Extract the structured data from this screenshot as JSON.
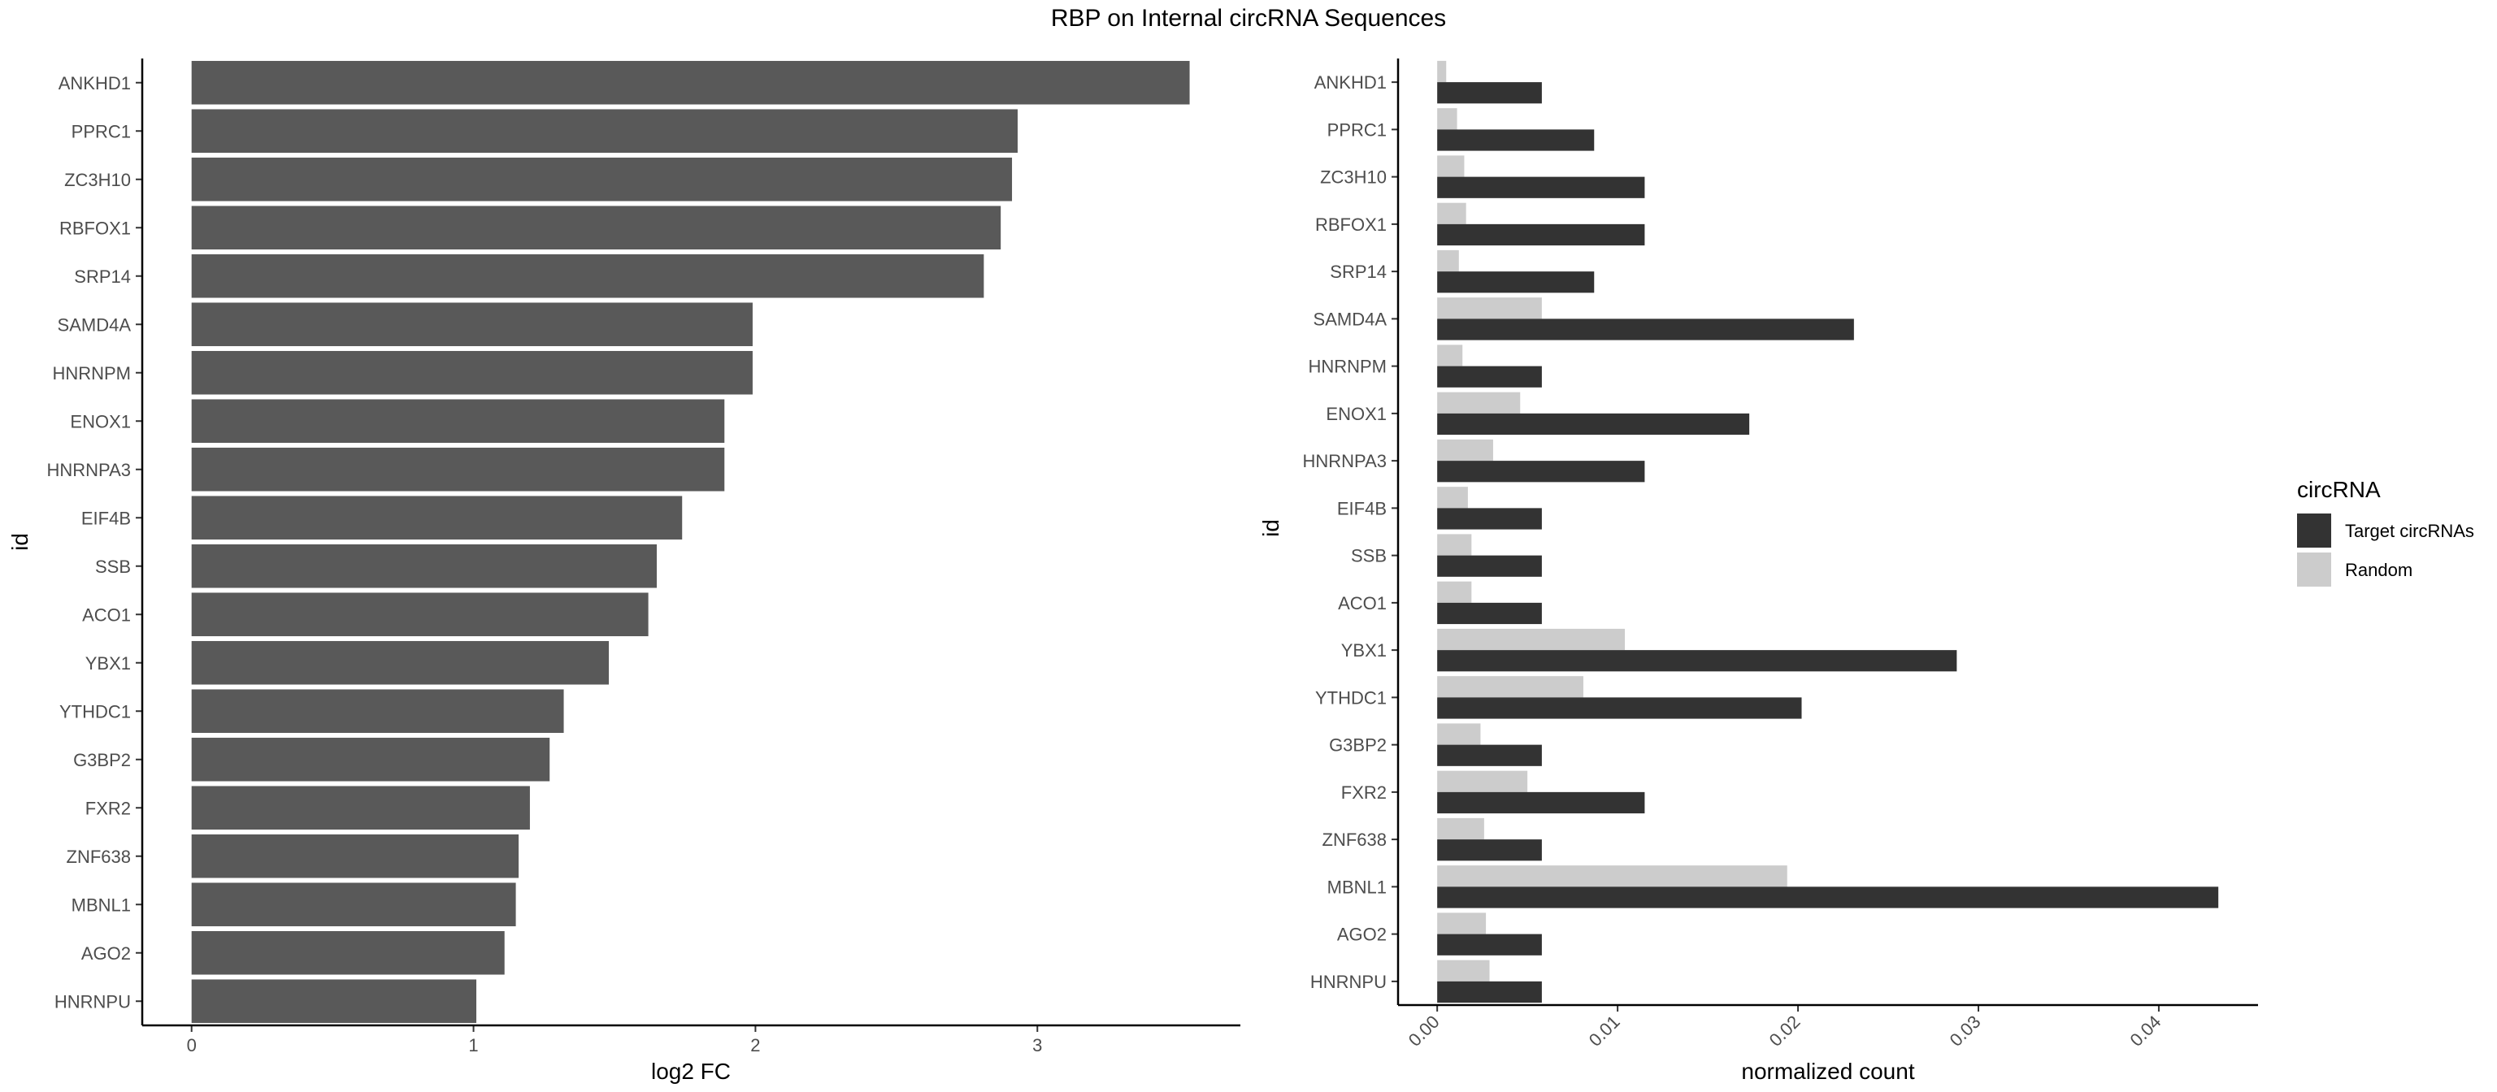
{
  "title": "RBP on Internal circRNA Sequences",
  "chart_data": [
    {
      "type": "bar",
      "orientation": "horizontal",
      "title": "RBP on Internal circRNA Sequences",
      "xlabel": "log2 FC",
      "ylabel": "id",
      "categories": [
        "ANKHD1",
        "PPRC1",
        "ZC3H10",
        "RBFOX1",
        "SRP14",
        "SAMD4A",
        "HNRNPM",
        "ENOX1",
        "HNRNPA3",
        "EIF4B",
        "SSB",
        "ACO1",
        "YBX1",
        "YTHDC1",
        "G3BP2",
        "FXR2",
        "ZNF638",
        "MBNL1",
        "AGO2",
        "HNRNPU"
      ],
      "values": [
        3.54,
        2.93,
        2.91,
        2.87,
        2.81,
        1.99,
        1.99,
        1.89,
        1.89,
        1.74,
        1.65,
        1.62,
        1.48,
        1.32,
        1.27,
        1.2,
        1.16,
        1.15,
        1.11,
        1.01
      ],
      "xticks": [
        "0",
        "1",
        "2",
        "3"
      ],
      "xlim": [
        -0.175,
        3.72
      ],
      "grid": false,
      "bar_color": "#595959"
    },
    {
      "type": "bar",
      "orientation": "horizontal",
      "grouped": true,
      "xlabel": "normalized count",
      "ylabel": "id",
      "categories": [
        "ANKHD1",
        "PPRC1",
        "ZC3H10",
        "RBFOX1",
        "SRP14",
        "SAMD4A",
        "HNRNPM",
        "ENOX1",
        "HNRNPA3",
        "EIF4B",
        "SSB",
        "ACO1",
        "YBX1",
        "YTHDC1",
        "G3BP2",
        "FXR2",
        "ZNF638",
        "MBNL1",
        "AGO2",
        "HNRNPU"
      ],
      "series": [
        {
          "name": "Target circRNAs",
          "color": "#333333",
          "values": [
            0.0058,
            0.0087,
            0.0115,
            0.0115,
            0.0087,
            0.0231,
            0.0058,
            0.0173,
            0.0115,
            0.0058,
            0.0058,
            0.0058,
            0.0288,
            0.0202,
            0.0058,
            0.0115,
            0.0058,
            0.0433,
            0.0058,
            0.0058
          ]
        },
        {
          "name": "Random",
          "color": "#cccccc",
          "values": [
            0.0005,
            0.0011,
            0.0015,
            0.0016,
            0.0012,
            0.0058,
            0.0014,
            0.0046,
            0.0031,
            0.0017,
            0.0019,
            0.0019,
            0.0104,
            0.0081,
            0.0024,
            0.005,
            0.0026,
            0.0194,
            0.0027,
            0.0029
          ]
        }
      ],
      "xticks": [
        "0.00",
        "0.01",
        "0.02",
        "0.03",
        "0.04"
      ],
      "xlim": [
        -0.00217,
        0.0455
      ],
      "grid": false,
      "legend": {
        "title": "circRNA",
        "position": "right"
      }
    }
  ]
}
